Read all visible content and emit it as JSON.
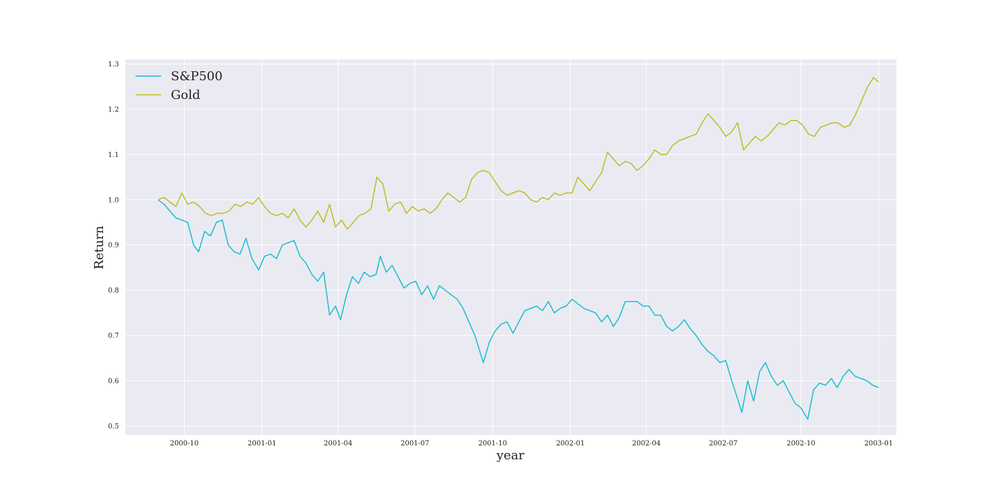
{
  "chart_data": {
    "type": "line",
    "title": "",
    "xlabel": "year",
    "ylabel": "Return",
    "grid": true,
    "legend": "top-left",
    "background": "#EAEAF2",
    "xlim": [
      "2000-07-23",
      "2003-01-22"
    ],
    "ylim": [
      0.48,
      1.31
    ],
    "xticks": [
      {
        "date": "2000-10-01",
        "label": "2000-10"
      },
      {
        "date": "2001-01-01",
        "label": "2001-01"
      },
      {
        "date": "2001-04-01",
        "label": "2001-04"
      },
      {
        "date": "2001-07-01",
        "label": "2001-07"
      },
      {
        "date": "2001-10-01",
        "label": "2001-10"
      },
      {
        "date": "2002-01-01",
        "label": "2002-01"
      },
      {
        "date": "2002-04-01",
        "label": "2002-04"
      },
      {
        "date": "2002-07-01",
        "label": "2002-07"
      },
      {
        "date": "2002-10-01",
        "label": "2002-10"
      },
      {
        "date": "2003-01-01",
        "label": "2003-01"
      }
    ],
    "yticks": [
      0.5,
      0.6,
      0.7,
      0.8,
      0.9,
      1.0,
      1.1,
      1.2,
      1.3
    ],
    "ytick_labels": [
      "0.5",
      "0.6",
      "0.7",
      "0.8",
      "0.9",
      "1.0",
      "1.1",
      "1.2",
      "1.3"
    ],
    "series": [
      {
        "name": "S&P500",
        "color": "#17BECF",
        "points": [
          [
            "2000-08-31",
            1.0
          ],
          [
            "2000-09-07",
            0.99
          ],
          [
            "2000-09-14",
            0.975
          ],
          [
            "2000-09-21",
            0.96
          ],
          [
            "2000-09-28",
            0.955
          ],
          [
            "2000-10-05",
            0.95
          ],
          [
            "2000-10-12",
            0.9
          ],
          [
            "2000-10-18",
            0.885
          ],
          [
            "2000-10-25",
            0.93
          ],
          [
            "2000-11-01",
            0.92
          ],
          [
            "2000-11-08",
            0.95
          ],
          [
            "2000-11-15",
            0.955
          ],
          [
            "2000-11-22",
            0.9
          ],
          [
            "2000-11-29",
            0.885
          ],
          [
            "2000-12-06",
            0.88
          ],
          [
            "2000-12-13",
            0.915
          ],
          [
            "2000-12-20",
            0.87
          ],
          [
            "2000-12-28",
            0.845
          ],
          [
            "2001-01-04",
            0.875
          ],
          [
            "2001-01-11",
            0.88
          ],
          [
            "2001-01-18",
            0.87
          ],
          [
            "2001-01-25",
            0.9
          ],
          [
            "2001-02-01",
            0.905
          ],
          [
            "2001-02-08",
            0.91
          ],
          [
            "2001-02-15",
            0.875
          ],
          [
            "2001-02-22",
            0.86
          ],
          [
            "2001-03-01",
            0.835
          ],
          [
            "2001-03-08",
            0.82
          ],
          [
            "2001-03-15",
            0.84
          ],
          [
            "2001-03-22",
            0.745
          ],
          [
            "2001-03-29",
            0.765
          ],
          [
            "2001-04-04",
            0.735
          ],
          [
            "2001-04-11",
            0.79
          ],
          [
            "2001-04-18",
            0.83
          ],
          [
            "2001-04-25",
            0.815
          ],
          [
            "2001-05-02",
            0.84
          ],
          [
            "2001-05-09",
            0.83
          ],
          [
            "2001-05-16",
            0.835
          ],
          [
            "2001-05-21",
            0.875
          ],
          [
            "2001-05-28",
            0.84
          ],
          [
            "2001-06-04",
            0.855
          ],
          [
            "2001-06-11",
            0.83
          ],
          [
            "2001-06-18",
            0.805
          ],
          [
            "2001-06-25",
            0.815
          ],
          [
            "2001-07-02",
            0.82
          ],
          [
            "2001-07-09",
            0.79
          ],
          [
            "2001-07-16",
            0.81
          ],
          [
            "2001-07-23",
            0.78
          ],
          [
            "2001-07-30",
            0.81
          ],
          [
            "2001-08-06",
            0.8
          ],
          [
            "2001-08-13",
            0.79
          ],
          [
            "2001-08-20",
            0.78
          ],
          [
            "2001-08-27",
            0.76
          ],
          [
            "2001-09-03",
            0.73
          ],
          [
            "2001-09-10",
            0.7
          ],
          [
            "2001-09-20",
            0.64
          ],
          [
            "2001-09-27",
            0.685
          ],
          [
            "2001-10-04",
            0.71
          ],
          [
            "2001-10-11",
            0.725
          ],
          [
            "2001-10-18",
            0.73
          ],
          [
            "2001-10-25",
            0.705
          ],
          [
            "2001-11-01",
            0.73
          ],
          [
            "2001-11-08",
            0.755
          ],
          [
            "2001-11-15",
            0.76
          ],
          [
            "2001-11-22",
            0.765
          ],
          [
            "2001-11-29",
            0.755
          ],
          [
            "2001-12-06",
            0.775
          ],
          [
            "2001-12-13",
            0.75
          ],
          [
            "2001-12-20",
            0.76
          ],
          [
            "2001-12-27",
            0.765
          ],
          [
            "2002-01-03",
            0.78
          ],
          [
            "2002-01-10",
            0.77
          ],
          [
            "2002-01-17",
            0.76
          ],
          [
            "2002-01-24",
            0.755
          ],
          [
            "2002-01-31",
            0.75
          ],
          [
            "2002-02-07",
            0.73
          ],
          [
            "2002-02-14",
            0.745
          ],
          [
            "2002-02-21",
            0.72
          ],
          [
            "2002-02-28",
            0.74
          ],
          [
            "2002-03-07",
            0.775
          ],
          [
            "2002-03-14",
            0.775
          ],
          [
            "2002-03-21",
            0.775
          ],
          [
            "2002-03-28",
            0.765
          ],
          [
            "2002-04-04",
            0.765
          ],
          [
            "2002-04-11",
            0.745
          ],
          [
            "2002-04-18",
            0.745
          ],
          [
            "2002-04-25",
            0.72
          ],
          [
            "2002-05-02",
            0.71
          ],
          [
            "2002-05-09",
            0.72
          ],
          [
            "2002-05-16",
            0.735
          ],
          [
            "2002-05-23",
            0.715
          ],
          [
            "2002-05-30",
            0.7
          ],
          [
            "2002-06-06",
            0.68
          ],
          [
            "2002-06-13",
            0.665
          ],
          [
            "2002-06-20",
            0.655
          ],
          [
            "2002-06-27",
            0.64
          ],
          [
            "2002-07-04",
            0.645
          ],
          [
            "2002-07-11",
            0.6
          ],
          [
            "2002-07-18",
            0.56
          ],
          [
            "2002-07-23",
            0.53
          ],
          [
            "2002-07-30",
            0.6
          ],
          [
            "2002-08-06",
            0.555
          ],
          [
            "2002-08-13",
            0.62
          ],
          [
            "2002-08-20",
            0.64
          ],
          [
            "2002-08-27",
            0.61
          ],
          [
            "2002-09-03",
            0.59
          ],
          [
            "2002-09-10",
            0.6
          ],
          [
            "2002-09-17",
            0.575
          ],
          [
            "2002-09-24",
            0.55
          ],
          [
            "2002-10-01",
            0.54
          ],
          [
            "2002-10-09",
            0.515
          ],
          [
            "2002-10-16",
            0.58
          ],
          [
            "2002-10-23",
            0.595
          ],
          [
            "2002-10-30",
            0.59
          ],
          [
            "2002-11-06",
            0.605
          ],
          [
            "2002-11-13",
            0.585
          ],
          [
            "2002-11-20",
            0.61
          ],
          [
            "2002-11-27",
            0.625
          ],
          [
            "2002-12-04",
            0.61
          ],
          [
            "2002-12-11",
            0.605
          ],
          [
            "2002-12-18",
            0.6
          ],
          [
            "2002-12-25",
            0.59
          ],
          [
            "2003-01-01",
            0.585
          ]
        ]
      },
      {
        "name": "Gold",
        "color": "#BCBD22",
        "points": [
          [
            "2000-08-31",
            1.0
          ],
          [
            "2000-09-07",
            1.005
          ],
          [
            "2000-09-14",
            0.995
          ],
          [
            "2000-09-21",
            0.985
          ],
          [
            "2000-09-28",
            1.015
          ],
          [
            "2000-10-05",
            0.99
          ],
          [
            "2000-10-12",
            0.995
          ],
          [
            "2000-10-19",
            0.985
          ],
          [
            "2000-10-26",
            0.97
          ],
          [
            "2000-11-02",
            0.965
          ],
          [
            "2000-11-09",
            0.97
          ],
          [
            "2000-11-16",
            0.97
          ],
          [
            "2000-11-23",
            0.975
          ],
          [
            "2000-11-30",
            0.99
          ],
          [
            "2000-12-07",
            0.985
          ],
          [
            "2000-12-14",
            0.995
          ],
          [
            "2000-12-21",
            0.99
          ],
          [
            "2000-12-28",
            1.005
          ],
          [
            "2001-01-04",
            0.985
          ],
          [
            "2001-01-11",
            0.97
          ],
          [
            "2001-01-18",
            0.965
          ],
          [
            "2001-01-25",
            0.97
          ],
          [
            "2001-02-01",
            0.96
          ],
          [
            "2001-02-08",
            0.98
          ],
          [
            "2001-02-15",
            0.955
          ],
          [
            "2001-02-22",
            0.94
          ],
          [
            "2001-03-01",
            0.955
          ],
          [
            "2001-03-08",
            0.975
          ],
          [
            "2001-03-15",
            0.95
          ],
          [
            "2001-03-22",
            0.99
          ],
          [
            "2001-03-29",
            0.94
          ],
          [
            "2001-04-05",
            0.955
          ],
          [
            "2001-04-12",
            0.935
          ],
          [
            "2001-04-19",
            0.95
          ],
          [
            "2001-04-26",
            0.965
          ],
          [
            "2001-05-03",
            0.97
          ],
          [
            "2001-05-10",
            0.98
          ],
          [
            "2001-05-17",
            1.05
          ],
          [
            "2001-05-24",
            1.035
          ],
          [
            "2001-05-31",
            0.975
          ],
          [
            "2001-06-07",
            0.99
          ],
          [
            "2001-06-14",
            0.995
          ],
          [
            "2001-06-21",
            0.97
          ],
          [
            "2001-06-28",
            0.985
          ],
          [
            "2001-07-05",
            0.975
          ],
          [
            "2001-07-12",
            0.98
          ],
          [
            "2001-07-19",
            0.97
          ],
          [
            "2001-07-26",
            0.98
          ],
          [
            "2001-08-02",
            1.0
          ],
          [
            "2001-08-09",
            1.015
          ],
          [
            "2001-08-16",
            1.005
          ],
          [
            "2001-08-23",
            0.995
          ],
          [
            "2001-08-30",
            1.005
          ],
          [
            "2001-09-06",
            1.045
          ],
          [
            "2001-09-13",
            1.06
          ],
          [
            "2001-09-20",
            1.065
          ],
          [
            "2001-09-27",
            1.06
          ],
          [
            "2001-10-04",
            1.04
          ],
          [
            "2001-10-11",
            1.02
          ],
          [
            "2001-10-18",
            1.01
          ],
          [
            "2001-10-25",
            1.015
          ],
          [
            "2001-11-01",
            1.02
          ],
          [
            "2001-11-08",
            1.015
          ],
          [
            "2001-11-15",
            1.0
          ],
          [
            "2001-11-22",
            0.995
          ],
          [
            "2001-11-29",
            1.005
          ],
          [
            "2001-12-06",
            1.0
          ],
          [
            "2001-12-13",
            1.015
          ],
          [
            "2001-12-20",
            1.01
          ],
          [
            "2001-12-27",
            1.015
          ],
          [
            "2002-01-03",
            1.015
          ],
          [
            "2002-01-10",
            1.05
          ],
          [
            "2002-01-17",
            1.035
          ],
          [
            "2002-01-24",
            1.02
          ],
          [
            "2002-01-31",
            1.04
          ],
          [
            "2002-02-07",
            1.06
          ],
          [
            "2002-02-14",
            1.105
          ],
          [
            "2002-02-21",
            1.09
          ],
          [
            "2002-02-28",
            1.075
          ],
          [
            "2002-03-07",
            1.085
          ],
          [
            "2002-03-14",
            1.08
          ],
          [
            "2002-03-21",
            1.065
          ],
          [
            "2002-03-28",
            1.075
          ],
          [
            "2002-04-04",
            1.09
          ],
          [
            "2002-04-11",
            1.11
          ],
          [
            "2002-04-18",
            1.1
          ],
          [
            "2002-04-25",
            1.1
          ],
          [
            "2002-05-02",
            1.12
          ],
          [
            "2002-05-09",
            1.13
          ],
          [
            "2002-05-16",
            1.135
          ],
          [
            "2002-05-23",
            1.14
          ],
          [
            "2002-05-30",
            1.145
          ],
          [
            "2002-06-06",
            1.17
          ],
          [
            "2002-06-13",
            1.19
          ],
          [
            "2002-06-20",
            1.175
          ],
          [
            "2002-06-27",
            1.16
          ],
          [
            "2002-07-04",
            1.14
          ],
          [
            "2002-07-11",
            1.15
          ],
          [
            "2002-07-18",
            1.17
          ],
          [
            "2002-07-25",
            1.11
          ],
          [
            "2002-08-01",
            1.125
          ],
          [
            "2002-08-08",
            1.14
          ],
          [
            "2002-08-15",
            1.13
          ],
          [
            "2002-08-22",
            1.14
          ],
          [
            "2002-08-29",
            1.155
          ],
          [
            "2002-09-05",
            1.17
          ],
          [
            "2002-09-12",
            1.165
          ],
          [
            "2002-09-19",
            1.175
          ],
          [
            "2002-09-26",
            1.175
          ],
          [
            "2002-10-03",
            1.165
          ],
          [
            "2002-10-10",
            1.145
          ],
          [
            "2002-10-17",
            1.14
          ],
          [
            "2002-10-24",
            1.16
          ],
          [
            "2002-10-31",
            1.165
          ],
          [
            "2002-11-07",
            1.17
          ],
          [
            "2002-11-14",
            1.17
          ],
          [
            "2002-11-21",
            1.16
          ],
          [
            "2002-11-28",
            1.165
          ],
          [
            "2002-12-05",
            1.19
          ],
          [
            "2002-12-12",
            1.22
          ],
          [
            "2002-12-19",
            1.25
          ],
          [
            "2002-12-26",
            1.27
          ],
          [
            "2003-01-01",
            1.26
          ]
        ]
      }
    ]
  }
}
